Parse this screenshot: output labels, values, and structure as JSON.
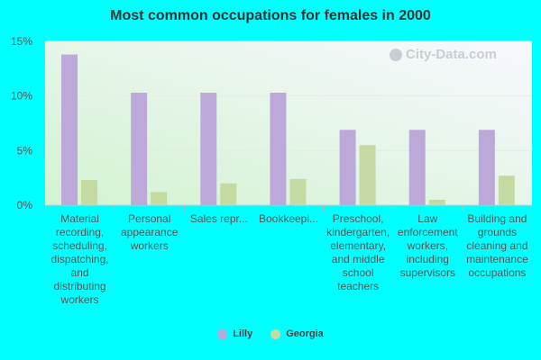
{
  "chart_data": {
    "type": "bar",
    "title": "Most common occupations for females in 2000",
    "categories": [
      "Material recording, scheduling, dispatching, and distributing workers",
      "Personal appearance workers",
      "Sales repr...",
      "Bookkeepi...",
      "Preschool, kindergarten, elementary, and middle school teachers",
      "Law enforcement workers, including supervisors",
      "Building and grounds cleaning and maintenance occupations"
    ],
    "series": [
      {
        "name": "Lilly",
        "color": "#bda9d9",
        "values": [
          13.8,
          10.3,
          10.3,
          10.3,
          6.9,
          6.9,
          6.9
        ]
      },
      {
        "name": "Georgia",
        "color": "#c5d9a3",
        "values": [
          2.3,
          1.2,
          2.0,
          2.4,
          5.5,
          0.5,
          2.7
        ]
      }
    ],
    "yticks": [
      "0%",
      "5%",
      "10%",
      "15%"
    ],
    "ytick_values": [
      0,
      5,
      10,
      15
    ],
    "ylim": [
      0,
      15
    ],
    "legend_position": "bottom",
    "grid": true
  },
  "watermark": {
    "text": "City-Data.com",
    "icon": "search-icon"
  }
}
